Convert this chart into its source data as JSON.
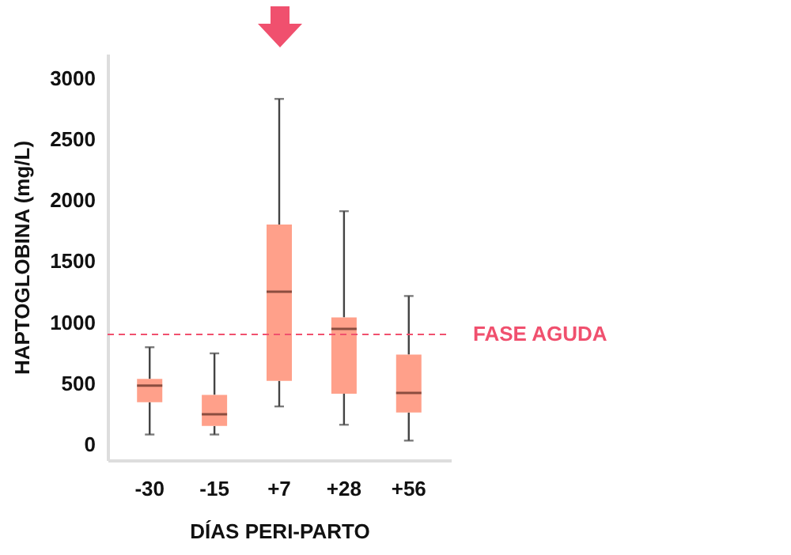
{
  "chart_data": {
    "type": "box",
    "xlabel": "DÍAS PERI-PARTO",
    "ylabel": "HAPTOGLOBINA (mg/L)",
    "categories": [
      "-30",
      "-15",
      "+7",
      "+28",
      "+56"
    ],
    "series": [
      {
        "color": "#ffa08a",
        "boxes": [
          {
            "low": 80,
            "q1": 345,
            "median": 480,
            "q3": 535,
            "high": 795
          },
          {
            "low": 80,
            "q1": 150,
            "median": 245,
            "q3": 405,
            "high": 745
          },
          {
            "low": 310,
            "q1": 520,
            "median": 1250,
            "q3": 1800,
            "high": 2830
          },
          {
            "low": 160,
            "q1": 415,
            "median": 945,
            "q3": 1040,
            "high": 1910
          },
          {
            "low": 30,
            "q1": 260,
            "median": 420,
            "q3": 735,
            "high": 1215
          }
        ]
      }
    ],
    "ylim": [
      -130,
      3200
    ],
    "yticks": [
      0,
      500,
      1000,
      1500,
      2000,
      2500,
      3000
    ],
    "grid": false,
    "ref_lines": [
      {
        "axis": "y",
        "value": 900,
        "label": "FASE AGUDA",
        "color": "#f0506e",
        "line_style": "dashed"
      }
    ]
  }
}
